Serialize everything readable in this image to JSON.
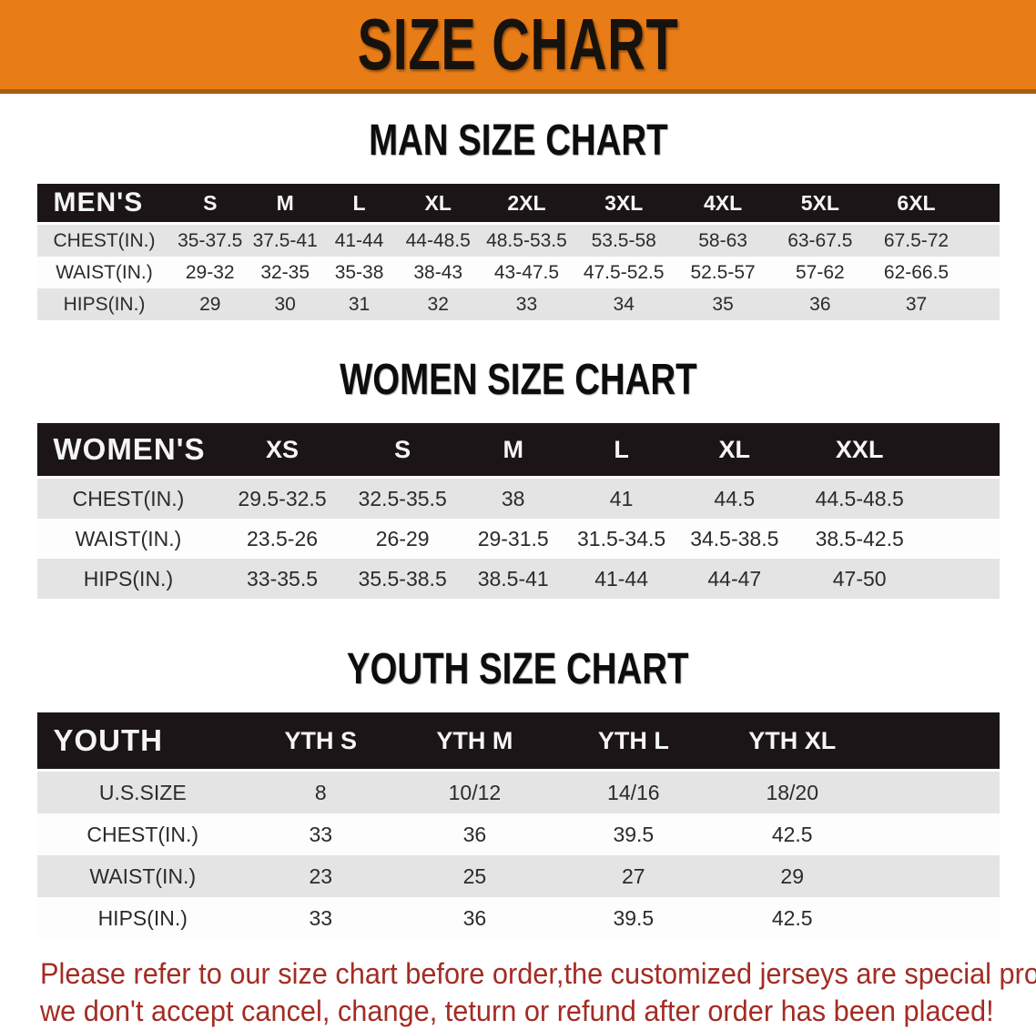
{
  "banner": {
    "title": "SIZE CHART",
    "bg_color": "#E87D17",
    "border_color": "#A85A10"
  },
  "chart_data": [
    {
      "type": "table",
      "title": "MAN SIZE CHART",
      "corner_label": "MEN'S",
      "columns": [
        "S",
        "M",
        "L",
        "XL",
        "2XL",
        "3XL",
        "4XL",
        "5XL",
        "6XL"
      ],
      "rows": [
        {
          "label": "CHEST(IN.)",
          "values": [
            "35-37.5",
            "37.5-41",
            "41-44",
            "44-48.5",
            "48.5-53.5",
            "53.5-58",
            "58-63",
            "63-67.5",
            "67.5-72"
          ]
        },
        {
          "label": "WAIST(IN.)",
          "values": [
            "29-32",
            "32-35",
            "35-38",
            "38-43",
            "43-47.5",
            "47.5-52.5",
            "52.5-57",
            "57-62",
            "62-66.5"
          ]
        },
        {
          "label": "HIPS(IN.)",
          "values": [
            "29",
            "30",
            "31",
            "32",
            "33",
            "34",
            "35",
            "36",
            "37"
          ]
        }
      ]
    },
    {
      "type": "table",
      "title": "WOMEN SIZE CHART",
      "corner_label": "WOMEN'S",
      "columns": [
        "XS",
        "S",
        "M",
        "L",
        "XL",
        "XXL"
      ],
      "rows": [
        {
          "label": "CHEST(IN.)",
          "values": [
            "29.5-32.5",
            "32.5-35.5",
            "38",
            "41",
            "44.5",
            "44.5-48.5"
          ]
        },
        {
          "label": "WAIST(IN.)",
          "values": [
            "23.5-26",
            "26-29",
            "29-31.5",
            "31.5-34.5",
            "34.5-38.5",
            "38.5-42.5"
          ]
        },
        {
          "label": "HIPS(IN.)",
          "values": [
            "33-35.5",
            "35.5-38.5",
            "38.5-41",
            "41-44",
            "44-47",
            "47-50"
          ]
        }
      ]
    },
    {
      "type": "table",
      "title": "YOUTH SIZE CHART",
      "corner_label": "YOUTH",
      "columns": [
        "YTH S",
        "YTH M",
        "YTH L",
        "YTH XL"
      ],
      "rows": [
        {
          "label": "U.S.SIZE",
          "values": [
            "8",
            "10/12",
            "14/16",
            "18/20"
          ]
        },
        {
          "label": "CHEST(IN.)",
          "values": [
            "33",
            "36",
            "39.5",
            "42.5"
          ]
        },
        {
          "label": "WAIST(IN.)",
          "values": [
            "23",
            "25",
            "27",
            "29"
          ]
        },
        {
          "label": "HIPS(IN.)",
          "values": [
            "33",
            "36",
            "39.5",
            "42.5"
          ]
        }
      ]
    }
  ],
  "disclaimer": {
    "line1": "Please refer to our size chart before order,the customized jerseys are special products,",
    "line2": "we don't accept cancel, change, teturn or refund after order has been placed!",
    "text_color": "#A32C24"
  }
}
